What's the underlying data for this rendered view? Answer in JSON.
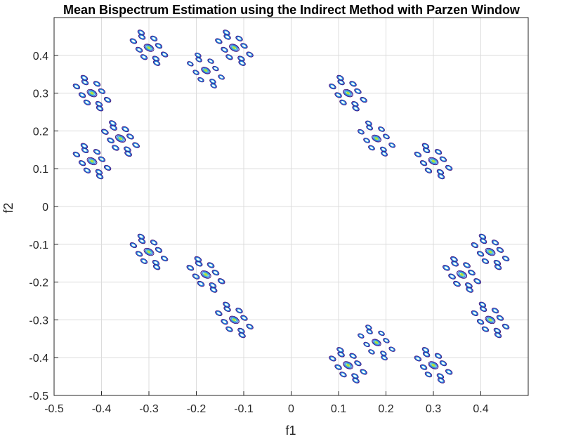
{
  "chart_data": {
    "type": "contour",
    "title": "Mean Bispectrum Estimation using the Indirect Method with Parzen Window",
    "xlabel": "f1",
    "ylabel": "f2",
    "xlim": [
      -0.5,
      0.5
    ],
    "ylim": [
      -0.5,
      0.5
    ],
    "xticks": [
      -0.5,
      -0.4,
      -0.3,
      -0.2,
      -0.1,
      0,
      0.1,
      0.2,
      0.3,
      0.4
    ],
    "yticks": [
      -0.5,
      -0.4,
      -0.3,
      -0.2,
      -0.1,
      0,
      0.1,
      0.2,
      0.3,
      0.4
    ],
    "xtick_labels": [
      "-0.5",
      "-0.4",
      "-0.3",
      "-0.2",
      "-0.1",
      "0",
      "0.1",
      "0.2",
      "0.3",
      "0.4"
    ],
    "ytick_labels": [
      "-0.5",
      "-0.4",
      "-0.3",
      "-0.2",
      "-0.1",
      "0",
      "0.1",
      "0.2",
      "0.3",
      "0.4"
    ],
    "grid": true,
    "contour_colors": [
      "#3b0f70",
      "#2c4fd6",
      "#1f9ad8",
      "#38c0b5",
      "#b8de3a"
    ],
    "peaks": [
      {
        "f1": -0.3,
        "f2": 0.42,
        "strength": 0.9
      },
      {
        "f1": -0.12,
        "f2": 0.42,
        "strength": 0.9
      },
      {
        "f1": -0.18,
        "f2": 0.36,
        "strength": 0.6
      },
      {
        "f1": -0.42,
        "f2": 0.3,
        "strength": 0.9
      },
      {
        "f1": -0.36,
        "f2": 0.18,
        "strength": 1.0
      },
      {
        "f1": -0.42,
        "f2": 0.12,
        "strength": 0.9
      },
      {
        "f1": 0.12,
        "f2": 0.3,
        "strength": 0.9
      },
      {
        "f1": 0.18,
        "f2": 0.18,
        "strength": 0.7
      },
      {
        "f1": 0.3,
        "f2": 0.12,
        "strength": 0.9
      },
      {
        "f1": -0.3,
        "f2": -0.12,
        "strength": 0.9
      },
      {
        "f1": -0.18,
        "f2": -0.18,
        "strength": 1.0
      },
      {
        "f1": -0.12,
        "f2": -0.3,
        "strength": 0.9
      },
      {
        "f1": 0.42,
        "f2": -0.12,
        "strength": 0.9
      },
      {
        "f1": 0.36,
        "f2": -0.18,
        "strength": 1.0
      },
      {
        "f1": 0.42,
        "f2": -0.3,
        "strength": 0.9
      },
      {
        "f1": 0.18,
        "f2": -0.36,
        "strength": 0.6
      },
      {
        "f1": 0.12,
        "f2": -0.42,
        "strength": 0.9
      },
      {
        "f1": 0.3,
        "f2": -0.42,
        "strength": 0.9
      }
    ]
  }
}
